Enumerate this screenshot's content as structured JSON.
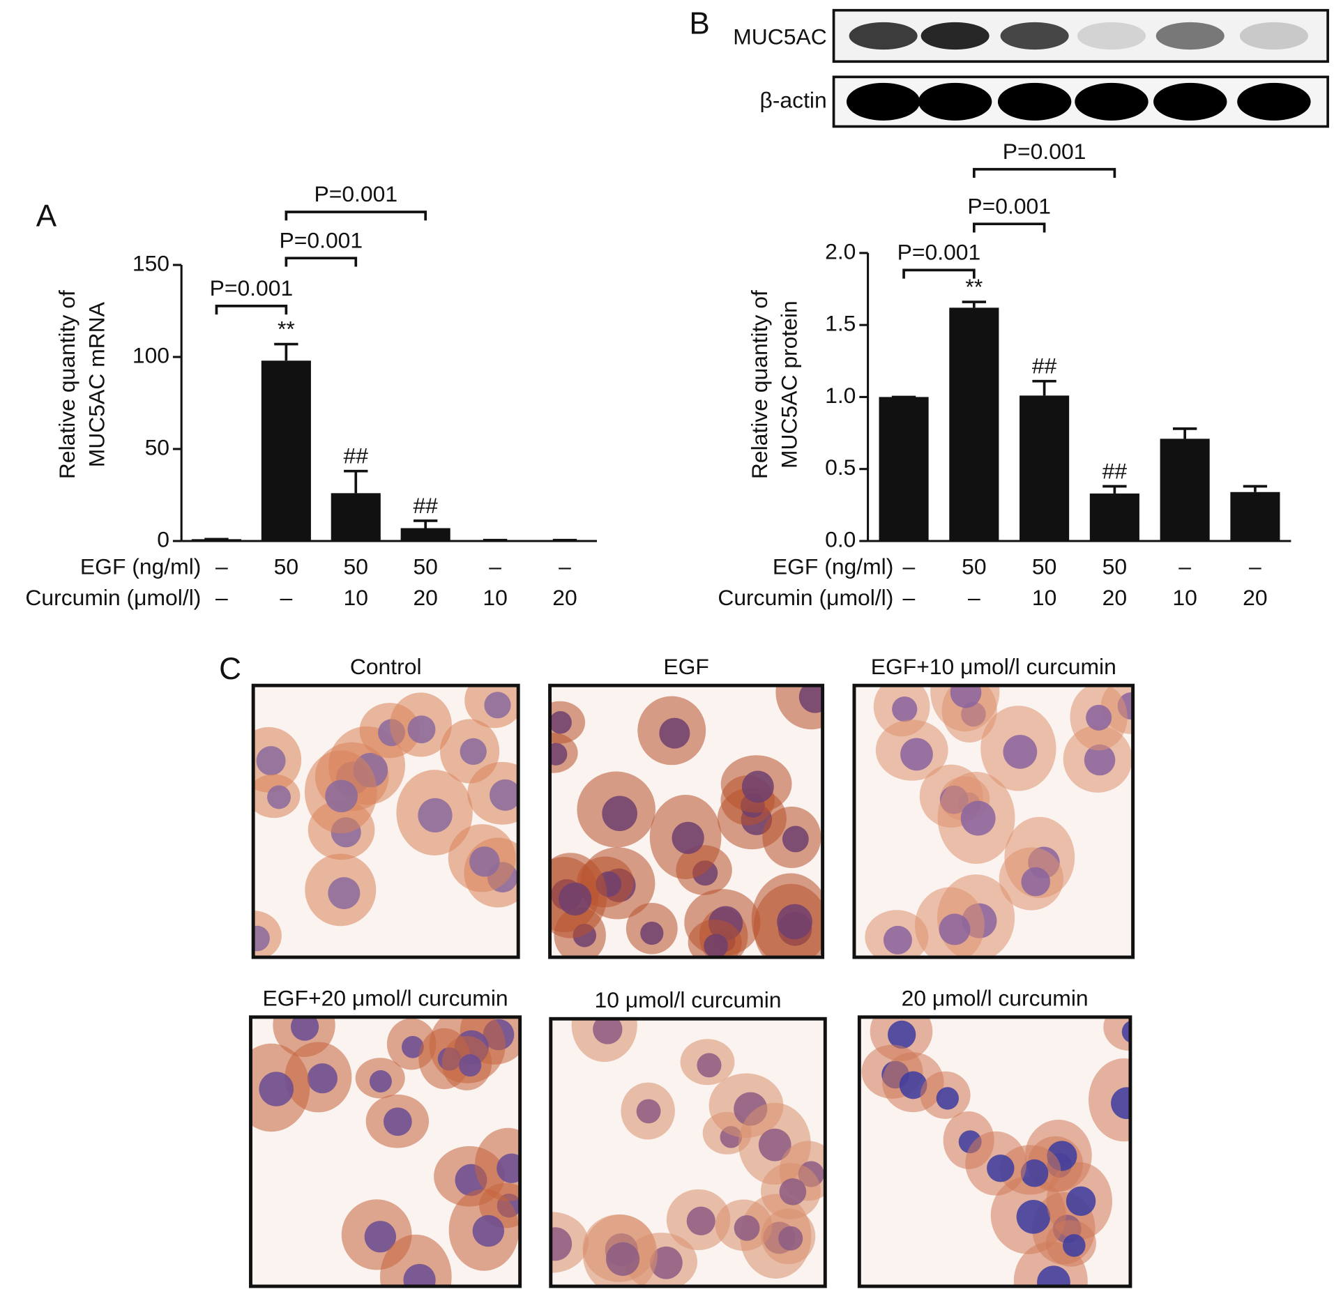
{
  "panel_labels": [
    "A",
    "B",
    "C"
  ],
  "blot": {
    "labels": [
      "MUC5AC",
      "β-actin"
    ]
  },
  "micrographs": {
    "titles": [
      "Control",
      "EGF",
      "EGF+10 μmol/l curcumin",
      "EGF+20 μmol/l curcumin",
      "10 μmol/l curcumin",
      "20 μmol/l curcumin"
    ]
  },
  "chart_data": [
    {
      "type": "bar",
      "ylabel": [
        "Relative quantity of",
        "MUC5AC mRNA"
      ],
      "row_labels": [
        "EGF (ng/ml)",
        "Curcumin (μmol/l)"
      ],
      "rows": [
        [
          "–",
          "50",
          "50",
          "50",
          "–",
          "–"
        ],
        [
          "–",
          "–",
          "10",
          "20",
          "10",
          "20"
        ]
      ],
      "values": [
        1,
        98,
        26,
        7,
        0.5,
        0.5
      ],
      "errors": [
        0,
        9,
        12,
        4,
        0,
        0
      ],
      "color": "#111111",
      "markers": [
        null,
        "**",
        "##",
        "##",
        null,
        null
      ],
      "brackets": [
        {
          "from": 0,
          "to": 1,
          "label": "P=0.001"
        },
        {
          "from": 1,
          "to": 2,
          "label": "P=0.001"
        },
        {
          "from": 1,
          "to": 3,
          "label": "P=0.001"
        }
      ],
      "ylim": [
        0,
        150
      ],
      "yticks": [
        0,
        50,
        100,
        150
      ]
    },
    {
      "type": "bar",
      "ylabel": [
        "Relative quantity of",
        "MUC5AC protein"
      ],
      "row_labels": [
        "EGF (ng/ml)",
        "Curcumin (μmol/l)"
      ],
      "rows": [
        [
          "–",
          "50",
          "50",
          "50",
          "–",
          "–"
        ],
        [
          "–",
          "–",
          "10",
          "20",
          "10",
          "20"
        ]
      ],
      "values": [
        1.0,
        1.62,
        1.01,
        0.33,
        0.71,
        0.34
      ],
      "errors": [
        0,
        0.04,
        0.1,
        0.05,
        0.07,
        0.04
      ],
      "color": "#111111",
      "markers": [
        null,
        "**",
        "##",
        "##",
        null,
        null
      ],
      "brackets": [
        {
          "from": 0,
          "to": 1,
          "label": "P=0.001"
        },
        {
          "from": 1,
          "to": 2,
          "label": "P=0.001"
        },
        {
          "from": 1,
          "to": 3,
          "label": "P=0.001"
        }
      ],
      "ylim": [
        0,
        2
      ],
      "yticks": [
        {
          "value": 0,
          "label": "0.0"
        },
        {
          "value": 0.5,
          "label": "0.5"
        },
        {
          "value": 1,
          "label": "1.0"
        },
        {
          "value": 1.5,
          "label": "1.5"
        },
        {
          "value": 2,
          "label": "2.0"
        }
      ]
    }
  ]
}
